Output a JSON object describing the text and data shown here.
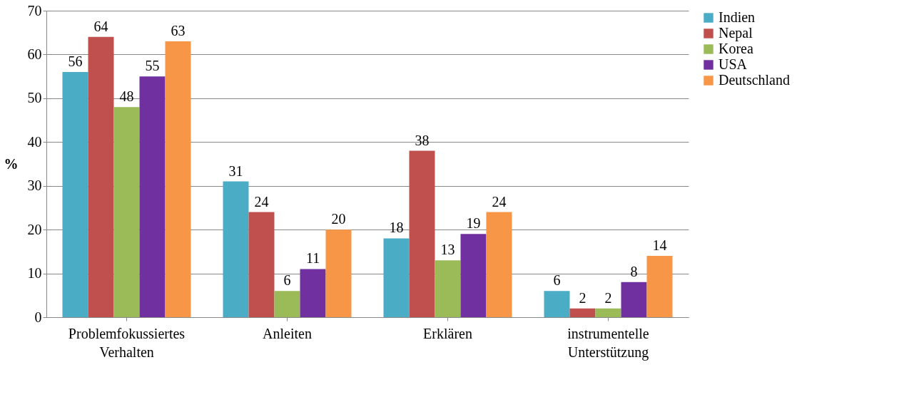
{
  "chart_data": {
    "type": "bar",
    "ylabel": "%",
    "categories": [
      "Problemfokussiertes Verhalten",
      "Anleiten",
      "Erklären",
      "instrumentelle Unterstützung"
    ],
    "series": [
      {
        "name": "Indien",
        "color": "#4bacc6",
        "values": [
          56,
          31,
          18,
          6
        ]
      },
      {
        "name": "Nepal",
        "color": "#c0504d",
        "values": [
          64,
          24,
          38,
          2
        ]
      },
      {
        "name": "Korea",
        "color": "#9bbb59",
        "values": [
          48,
          6,
          13,
          2
        ]
      },
      {
        "name": "USA",
        "color": "#7030a0",
        "values": [
          55,
          11,
          19,
          8
        ]
      },
      {
        "name": "Deutschland",
        "color": "#f79646",
        "values": [
          63,
          20,
          24,
          14
        ]
      }
    ],
    "ylim": [
      0,
      70
    ],
    "yticks": [
      0,
      10,
      20,
      30,
      40,
      50,
      60,
      70
    ],
    "grid": "y",
    "legend": "right",
    "data_labels": true
  }
}
